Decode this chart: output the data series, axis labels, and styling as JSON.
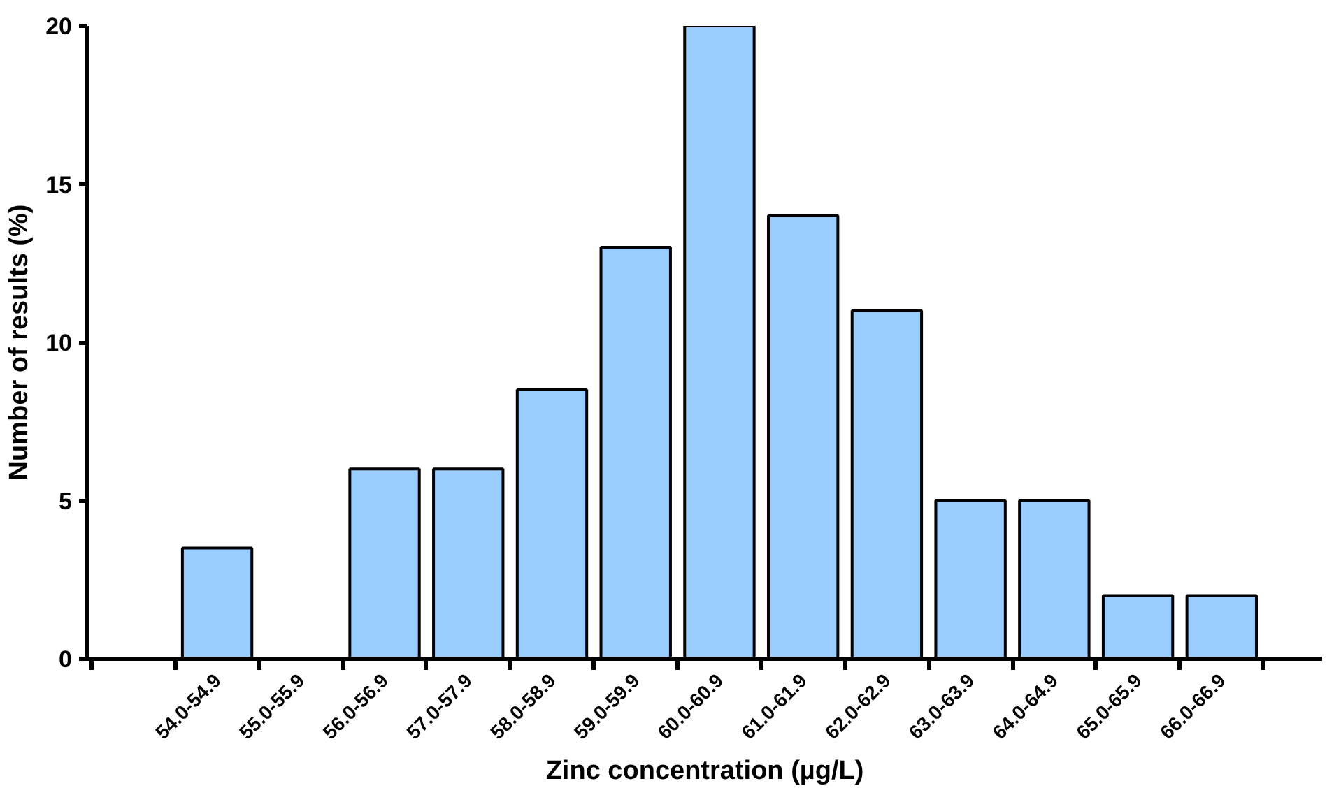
{
  "chart_data": {
    "type": "bar",
    "xlabel": "Zinc concentration (µg/L)",
    "ylabel": "Number of results (%)",
    "categories": [
      "54.0-54.9",
      "55.0-55.9",
      "56.0-56.9",
      "57.0-57.9",
      "58.0-58.9",
      "59.0-59.9",
      "60.0-60.9",
      "61.0-61.9",
      "62.0-62.9",
      "63.0-63.9",
      "64.0-64.9",
      "65.0-65.9",
      "66.0-66.9"
    ],
    "values": [
      3.5,
      0,
      6,
      6,
      8.5,
      13,
      20,
      14,
      11,
      5,
      5,
      2,
      2
    ],
    "color": "#99ccff",
    "ylim": [
      0,
      20
    ],
    "yticks": [
      0,
      5,
      10,
      15,
      20
    ],
    "grid": false
  }
}
